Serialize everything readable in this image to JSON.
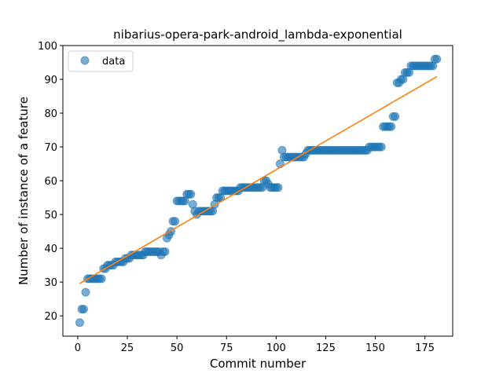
{
  "chart_data": {
    "type": "scatter",
    "title": "nibarius-opera-park-android_lambda-exponential",
    "xlabel": "Commit number",
    "ylabel": "Number of instance of a feature",
    "xlim": [
      -7.5,
      189
    ],
    "ylim": [
      14,
      100
    ],
    "xticks": [
      0,
      25,
      50,
      75,
      100,
      125,
      150,
      175
    ],
    "yticks": [
      20,
      30,
      40,
      50,
      60,
      70,
      80,
      90,
      100
    ],
    "grid": false,
    "legend": {
      "position": "top-left",
      "entries": [
        "data"
      ]
    },
    "colors": {
      "data": "#1f77b4",
      "fit": "#ff7f0e"
    },
    "series": [
      {
        "name": "data",
        "kind": "scatter",
        "x": [
          1,
          2,
          3,
          4,
          5,
          6,
          7,
          8,
          9,
          10,
          11,
          12,
          13,
          14,
          15,
          16,
          17,
          18,
          19,
          20,
          21,
          22,
          23,
          24,
          25,
          26,
          27,
          28,
          29,
          30,
          31,
          32,
          33,
          34,
          35,
          36,
          37,
          38,
          39,
          40,
          41,
          42,
          43,
          44,
          45,
          46,
          47,
          48,
          49,
          50,
          51,
          52,
          53,
          54,
          55,
          56,
          57,
          58,
          59,
          60,
          61,
          62,
          63,
          64,
          65,
          66,
          67,
          68,
          69,
          70,
          71,
          72,
          73,
          74,
          75,
          76,
          77,
          78,
          79,
          80,
          81,
          82,
          83,
          84,
          85,
          86,
          87,
          88,
          89,
          90,
          91,
          92,
          93,
          94,
          95,
          96,
          97,
          98,
          99,
          100,
          101,
          102,
          103,
          104,
          105,
          106,
          107,
          108,
          109,
          110,
          111,
          112,
          113,
          114,
          115,
          116,
          117,
          118,
          119,
          120,
          121,
          122,
          123,
          124,
          125,
          126,
          127,
          128,
          129,
          130,
          131,
          132,
          133,
          134,
          135,
          136,
          137,
          138,
          139,
          140,
          141,
          142,
          143,
          144,
          145,
          146,
          147,
          148,
          149,
          150,
          151,
          152,
          153,
          154,
          155,
          156,
          157,
          158,
          159,
          160,
          161,
          162,
          163,
          164,
          165,
          166,
          167,
          168,
          169,
          170,
          171,
          172,
          173,
          174,
          175,
          176,
          177,
          178,
          179,
          180,
          181
        ],
        "y": [
          18,
          22,
          22,
          27,
          31,
          31,
          31,
          31,
          31,
          31,
          31,
          31,
          34,
          34,
          35,
          35,
          35,
          35,
          36,
          36,
          36,
          36,
          36,
          37,
          37,
          37,
          38,
          38,
          38,
          38,
          38,
          38,
          38,
          39,
          39,
          39,
          39,
          39,
          39,
          39,
          39,
          38,
          39,
          39,
          43,
          44,
          45,
          48,
          48,
          54,
          54,
          54,
          54,
          54,
          56,
          56,
          56,
          53,
          51,
          50,
          51,
          51,
          51,
          51,
          51,
          51,
          51,
          51,
          53,
          55,
          55,
          55,
          57,
          57,
          57,
          57,
          57,
          57,
          57,
          57,
          57,
          58,
          58,
          58,
          58,
          58,
          58,
          58,
          58,
          58,
          58,
          58,
          58,
          60,
          60,
          59,
          58,
          58,
          58,
          58,
          58,
          65,
          69,
          67,
          67,
          67,
          67,
          67,
          67,
          67,
          67,
          67,
          67,
          67,
          68,
          69,
          69,
          69,
          69,
          69,
          69,
          69,
          69,
          69,
          69,
          69,
          69,
          69,
          69,
          69,
          69,
          69,
          69,
          69,
          69,
          69,
          69,
          69,
          69,
          69,
          69,
          69,
          69,
          69,
          69,
          69,
          70,
          70,
          70,
          70,
          70,
          70,
          70,
          76,
          76,
          76,
          76,
          76,
          79,
          79,
          89,
          89,
          90,
          90,
          92,
          92,
          92,
          94,
          94,
          94,
          94,
          94,
          94,
          94,
          94,
          94,
          94,
          94,
          94,
          96,
          96
        ]
      },
      {
        "name": "",
        "kind": "line",
        "x": [
          1,
          181
        ],
        "y": [
          29.6,
          90.8
        ]
      }
    ]
  }
}
